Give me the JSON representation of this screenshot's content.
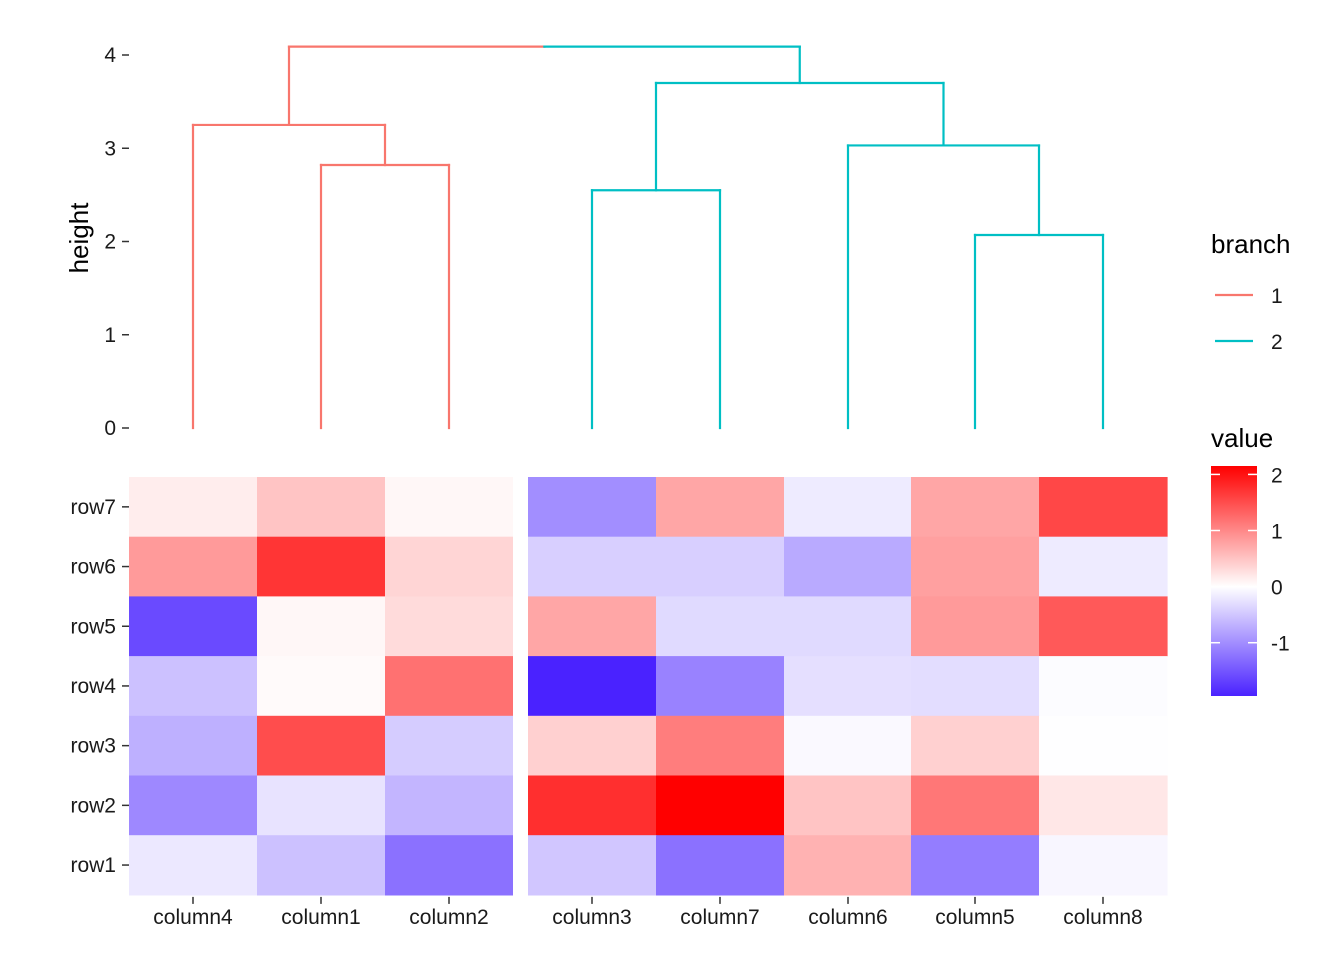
{
  "chart_data": [
    {
      "type": "dendrogram",
      "ylabel": "height",
      "ylim": [
        0,
        4
      ],
      "yticks": [
        0,
        1,
        2,
        3,
        4
      ],
      "leaves": [
        "column4",
        "column1",
        "column2",
        "column3",
        "column7",
        "column6",
        "column5",
        "column8"
      ],
      "merges": [
        {
          "left": "column1",
          "right": "column2",
          "height": 2.82,
          "branch": "1"
        },
        {
          "left": "column4",
          "right": "column1+column2",
          "height": 3.25,
          "branch": "1"
        },
        {
          "left": "column3",
          "right": "column7",
          "height": 2.55,
          "branch": "2"
        },
        {
          "left": "column5",
          "right": "column8",
          "height": 2.07,
          "branch": "2"
        },
        {
          "left": "column6",
          "right": "column5+column8",
          "height": 3.03,
          "branch": "2"
        },
        {
          "left": "column3+column7",
          "right": "column6+column5+column8",
          "height": 3.7,
          "branch": "2"
        },
        {
          "left": "branch 1",
          "right": "branch 2",
          "height": 4.09,
          "branch": "root"
        }
      ],
      "legend": {
        "title": "branch",
        "entries": [
          {
            "label": "1",
            "color": "#F8766D"
          },
          {
            "label": "2",
            "color": "#00BFC4"
          }
        ]
      }
    },
    {
      "type": "heatmap",
      "x_groups": [
        [
          "column4",
          "column1",
          "column2"
        ],
        [
          "column3",
          "column7",
          "column6",
          "column5",
          "column8"
        ]
      ],
      "columns": [
        "column4",
        "column1",
        "column2",
        "column3",
        "column7",
        "column6",
        "column5",
        "column8"
      ],
      "rows": [
        "row7",
        "row6",
        "row5",
        "row4",
        "row3",
        "row2",
        "row1"
      ],
      "values": [
        [
          0.15,
          0.5,
          0.07,
          -1.0,
          0.75,
          -0.18,
          0.75,
          1.55
        ],
        [
          0.85,
          1.7,
          0.35,
          -0.42,
          -0.42,
          -0.75,
          0.8,
          -0.18
        ],
        [
          -1.6,
          0.07,
          0.3,
          0.75,
          -0.33,
          -0.33,
          0.85,
          1.4
        ],
        [
          -0.55,
          0.04,
          1.2,
          -1.95,
          -1.1,
          -0.28,
          -0.3,
          -0.03
        ],
        [
          -0.7,
          1.5,
          -0.45,
          0.4,
          1.1,
          -0.05,
          0.4,
          -0.01
        ],
        [
          -1.05,
          -0.25,
          -0.65,
          1.75,
          2.15,
          0.5,
          1.15,
          0.2
        ],
        [
          -0.2,
          -0.55,
          -1.25,
          -0.5,
          -1.25,
          0.65,
          -1.15,
          -0.08
        ]
      ],
      "legend": {
        "title": "value",
        "ticks": [
          2,
          1,
          0,
          -1
        ],
        "range": [
          -1.95,
          2.15
        ],
        "colors": {
          "low": "#4A22FF",
          "mid": "#FFFFFF",
          "high": "#FF0000"
        }
      }
    }
  ]
}
